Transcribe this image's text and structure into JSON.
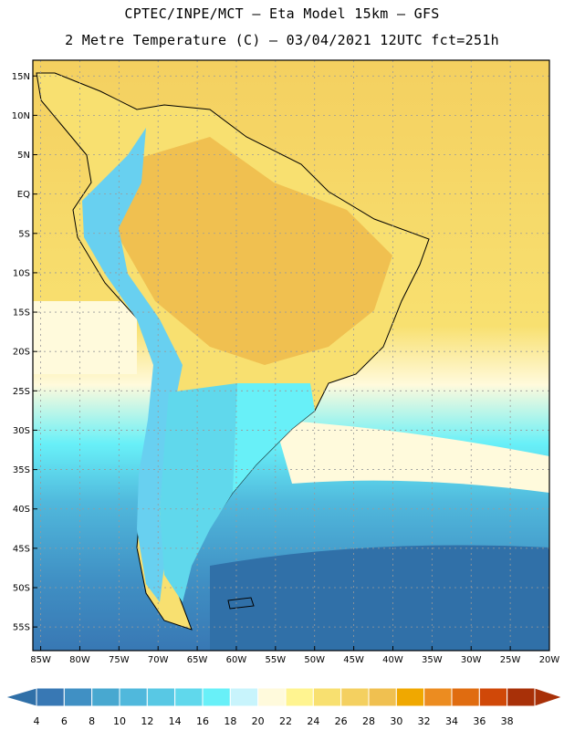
{
  "title_line1": "CPTEC/INPE/MCT  –   Eta Model 15km  –  GFS",
  "title_line2": "2 Metre Temperature (C) – 03/04/2021 12UTC fct=251h",
  "lat_labels": [
    "15N",
    "10N",
    "5N",
    "EQ",
    "5S",
    "10S",
    "15S",
    "20S",
    "25S",
    "30S",
    "35S",
    "40S",
    "45S",
    "50S",
    "55S"
  ],
  "lat_values": [
    15,
    10,
    5,
    0,
    -5,
    -10,
    -15,
    -20,
    -25,
    -30,
    -35,
    -40,
    -45,
    -50,
    -55
  ],
  "lon_labels": [
    "85W",
    "80W",
    "75W",
    "70W",
    "65W",
    "60W",
    "55W",
    "50W",
    "45W",
    "40W",
    "35W",
    "30W",
    "25W",
    "20W"
  ],
  "lon_values": [
    -85,
    -80,
    -75,
    -70,
    -65,
    -60,
    -55,
    -50,
    -45,
    -40,
    -35,
    -30,
    -25,
    -20
  ],
  "extent": {
    "lon_min": -86,
    "lon_max": -20,
    "lat_min": -58,
    "lat_max": 17
  },
  "colorbar": {
    "labels": [
      "4",
      "6",
      "8",
      "10",
      "12",
      "14",
      "16",
      "18",
      "20",
      "22",
      "24",
      "26",
      "28",
      "30",
      "32",
      "34",
      "36",
      "38"
    ],
    "colors": [
      "#3878b4",
      "#4090c4",
      "#48a8d0",
      "#50b8dc",
      "#58c8e4",
      "#60d8ec",
      "#68f0f8",
      "#c8f4fc",
      "#fffadc",
      "#fff490",
      "#f8e070",
      "#f4d060",
      "#f0c050",
      "#f0a800",
      "#ec8c20",
      "#e06c10",
      "#d04808",
      "#a83008"
    ],
    "low_color": "#3070a8",
    "high_color": "#a83008"
  }
}
